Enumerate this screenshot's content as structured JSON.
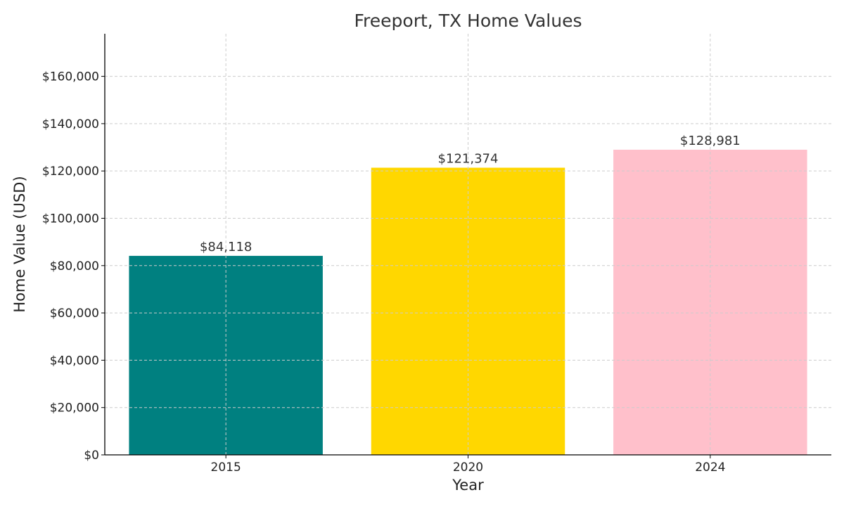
{
  "chart_data": {
    "type": "bar",
    "title": "Freeport, TX Home Values",
    "xlabel": "Year",
    "ylabel": "Home Value (USD)",
    "categories": [
      "2015",
      "2020",
      "2024"
    ],
    "values": [
      84118,
      121374,
      128981
    ],
    "value_labels": [
      "$84,118",
      "$121,374",
      "$128,981"
    ],
    "colors": [
      "#008080",
      "#FFD700",
      "#FFC0CB"
    ],
    "ylim": [
      0,
      178000
    ],
    "yticks": [
      0,
      20000,
      40000,
      60000,
      80000,
      100000,
      120000,
      140000,
      160000
    ],
    "ytick_labels": [
      "$0",
      "$20,000",
      "$40,000",
      "$60,000",
      "$80,000",
      "$100,000",
      "$120,000",
      "$140,000",
      "$160,000"
    ],
    "grid": true
  }
}
